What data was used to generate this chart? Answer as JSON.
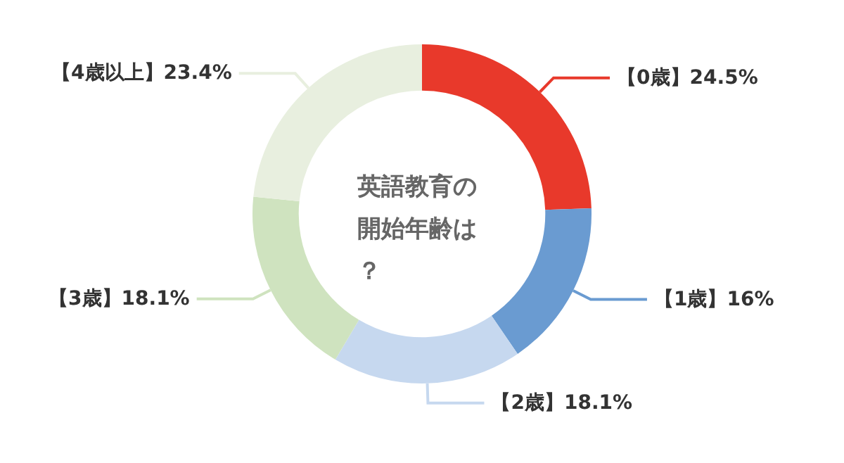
{
  "chart_data": {
    "type": "donut",
    "title": "英語教育の開始年齢は？",
    "categories": [
      "【0歳】",
      "【1歳】",
      "【2歳】",
      "【3歳】",
      "【4歳以上】"
    ],
    "values": [
      24.5,
      16,
      18.1,
      18.1,
      23.4
    ],
    "value_labels": [
      "24.5%",
      "16%",
      "18.1%",
      "18.1%",
      "23.4%"
    ],
    "colors": [
      "#e8392b",
      "#6a9bd1",
      "#c6d8ef",
      "#cfe3bf",
      "#e8efdf"
    ],
    "legend": false
  }
}
